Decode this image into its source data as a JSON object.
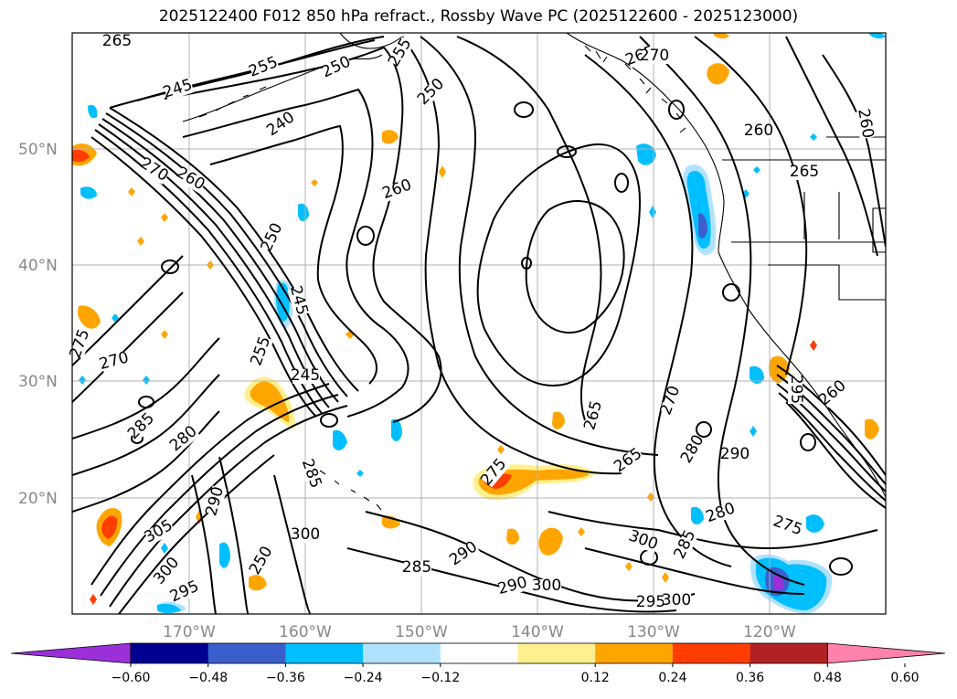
{
  "title": "2025122400 F012 850 hPa refract., Rossby Wave PC (2025122600 - 2025123000)",
  "lat_labels": [
    "50°N",
    "40°N",
    "30°N",
    "20°N"
  ],
  "lon_labels": [
    "170°W",
    "160°W",
    "150°W",
    "140°W",
    "130°W",
    "120°W"
  ],
  "colorbar": {
    "colors": [
      "#9b30d9",
      "#000090",
      "#3a5fcd",
      "#00bfff",
      "#b0e2ff",
      "#ffffff",
      "#fff08f",
      "#ffa500",
      "#ff3d00",
      "#b22222",
      "#ff82ab"
    ],
    "tick_labels": [
      "−0.60",
      "−0.48",
      "−0.36",
      "−0.24",
      "−0.12",
      "0.12",
      "0.24",
      "0.36",
      "0.48",
      "0.60"
    ]
  },
  "contour_labels": [
    "265",
    "255",
    "250",
    "255",
    "245",
    "240",
    "250",
    "260",
    "260",
    "270",
    "265",
    "270",
    "260",
    "265",
    "260",
    "250",
    "245",
    "245",
    "275",
    "270",
    "275",
    "285",
    "280",
    "290",
    "305",
    "300",
    "295",
    "300",
    "285",
    "290",
    "290",
    "300",
    "265",
    "270",
    "280",
    "290",
    "265",
    "275",
    "300",
    "285",
    "280",
    "295",
    "300",
    "295",
    "260",
    "255",
    "285",
    "250"
  ],
  "shaded_regions": {
    "positive": [
      "#ffa500",
      "#ff3d00",
      "#fff08f"
    ],
    "negative": [
      "#00bfff",
      "#3a5fcd",
      "#b0e2ff"
    ]
  }
}
